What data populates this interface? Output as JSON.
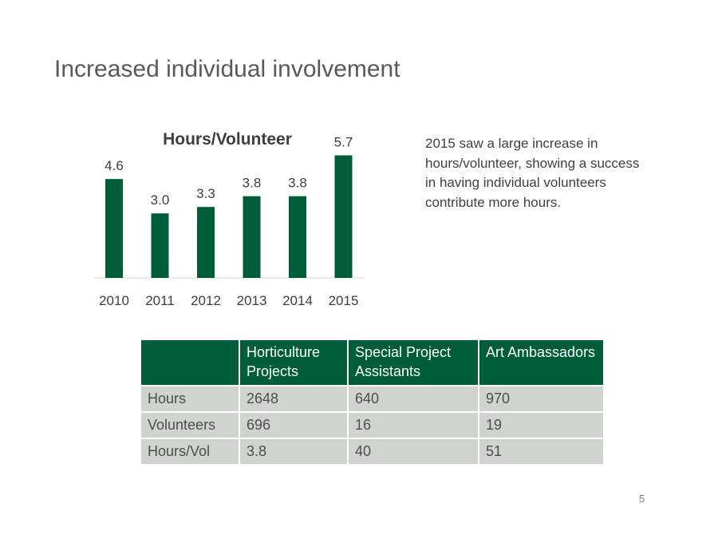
{
  "slide": {
    "title": "Increased individual involvement",
    "description": "2015 saw a large increase in hours/volunteer, showing a success in having individual volunteers contribute more hours.",
    "page_number": "5"
  },
  "chart_data": {
    "type": "bar",
    "title": "Hours/Volunteer",
    "categories": [
      "2010",
      "2011",
      "2012",
      "2013",
      "2014",
      "2015"
    ],
    "values": [
      4.6,
      3.0,
      3.3,
      3.8,
      3.8,
      5.7
    ],
    "data_labels": [
      "4.6",
      "3.0",
      "3.3",
      "3.8",
      "3.8",
      "5.7"
    ],
    "xlabel": "",
    "ylabel": "",
    "ylim": [
      0,
      6.5
    ],
    "grid": false,
    "legend": "none",
    "bar_color": "#005d3a"
  },
  "table": {
    "headers": [
      "",
      "Horticulture Projects",
      "Special Project Assistants",
      "Art Ambassadors"
    ],
    "rows": [
      [
        "Hours",
        "2648",
        "640",
        "970"
      ],
      [
        "Volunteers",
        "696",
        "16",
        "19"
      ],
      [
        "Hours/Vol",
        "3.8",
        "40",
        "51"
      ]
    ],
    "header_color": "#005d3a",
    "row_color": "#d0d3d0"
  }
}
